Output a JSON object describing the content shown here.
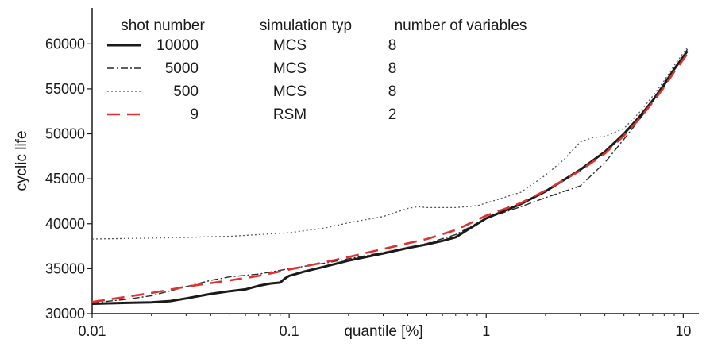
{
  "chart_data": {
    "type": "line",
    "title": "",
    "xlabel": "quantile [%]",
    "ylabel": "cyclic life",
    "x_scale": "log",
    "xlim": [
      0.01,
      12
    ],
    "ylim": [
      30000,
      64000
    ],
    "x_ticks": [
      {
        "value": 0.01,
        "label": "0.01"
      },
      {
        "value": 0.1,
        "label": "0.1"
      },
      {
        "value": 1,
        "label": "1"
      },
      {
        "value": 10,
        "label": "10"
      }
    ],
    "y_ticks": [
      {
        "value": 30000,
        "label": "30000"
      },
      {
        "value": 35000,
        "label": "35000"
      },
      {
        "value": 40000,
        "label": "40000"
      },
      {
        "value": 45000,
        "label": "45000"
      },
      {
        "value": 50000,
        "label": "50000"
      },
      {
        "value": 55000,
        "label": "55000"
      },
      {
        "value": 60000,
        "label": "60000"
      }
    ],
    "grid": false,
    "legend": {
      "position": "top-left",
      "headers": [
        "shot number",
        "simulation typ",
        "number of variables"
      ]
    },
    "series": [
      {
        "shots": "10000",
        "sim": "MCS",
        "vars": "8",
        "color": "#1a1a1a",
        "style": "solid",
        "x": [
          0.01,
          0.015,
          0.02,
          0.025,
          0.03,
          0.04,
          0.05,
          0.06,
          0.07,
          0.08,
          0.09,
          0.095,
          0.1,
          0.12,
          0.15,
          0.2,
          0.3,
          0.4,
          0.5,
          0.6,
          0.7,
          0.8,
          1.0,
          1.5,
          2.0,
          3.0,
          4.0,
          5.0,
          6.0,
          7.0,
          8.0,
          9.0,
          10.5
        ],
        "y": [
          31100,
          31200,
          31250,
          31400,
          31700,
          32200,
          32500,
          32700,
          33100,
          33350,
          33450,
          33900,
          34200,
          34700,
          35200,
          35900,
          36700,
          37300,
          37700,
          38100,
          38500,
          39300,
          40600,
          42200,
          43600,
          46000,
          48000,
          50000,
          51900,
          53700,
          55500,
          57200,
          59200
        ]
      },
      {
        "shots": "5000",
        "sim": "MCS",
        "vars": "8",
        "color": "#2a2a2a",
        "style": "dashdot",
        "x": [
          0.01,
          0.015,
          0.02,
          0.03,
          0.04,
          0.05,
          0.07,
          0.1,
          0.15,
          0.2,
          0.3,
          0.5,
          0.7,
          1.0,
          1.5,
          2.0,
          3.0,
          4.0,
          5.0,
          6.0,
          7.0,
          8.0,
          9.0,
          10.5
        ],
        "y": [
          31200,
          31600,
          32000,
          33000,
          33700,
          34100,
          34400,
          35000,
          35600,
          36100,
          36800,
          37800,
          38800,
          40600,
          41900,
          42900,
          44200,
          46800,
          49400,
          51600,
          53600,
          55300,
          57100,
          59400
        ]
      },
      {
        "shots": "500",
        "sim": "MCS",
        "vars": "8",
        "color": "#555555",
        "style": "dotted",
        "x": [
          0.01,
          0.02,
          0.05,
          0.1,
          0.15,
          0.2,
          0.3,
          0.4,
          0.45,
          0.5,
          0.7,
          0.9,
          1.0,
          1.5,
          2.0,
          2.5,
          3.0,
          3.5,
          4.0,
          5.0,
          6.0,
          7.0,
          8.0,
          9.0,
          10.5
        ],
        "y": [
          38300,
          38400,
          38600,
          39000,
          39500,
          40100,
          40800,
          41700,
          41900,
          41800,
          41800,
          42000,
          42300,
          43500,
          45400,
          47200,
          49100,
          49600,
          49700,
          50600,
          52400,
          54200,
          55900,
          57600,
          59600
        ]
      },
      {
        "shots": "9",
        "sim": "RSM",
        "vars": "2",
        "color": "#e03030",
        "style": "dashed",
        "x": [
          0.01,
          0.02,
          0.03,
          0.05,
          0.07,
          0.1,
          0.15,
          0.2,
          0.3,
          0.5,
          0.7,
          1.0,
          1.5,
          2.0,
          3.0,
          4.0,
          5.0,
          6.0,
          7.0,
          8.0,
          9.0,
          10.5
        ],
        "y": [
          31300,
          32300,
          33000,
          33700,
          34200,
          34900,
          35700,
          36300,
          37200,
          38300,
          39300,
          40900,
          42300,
          43700,
          45900,
          47800,
          49800,
          51700,
          53500,
          55200,
          56900,
          58900
        ]
      }
    ]
  }
}
